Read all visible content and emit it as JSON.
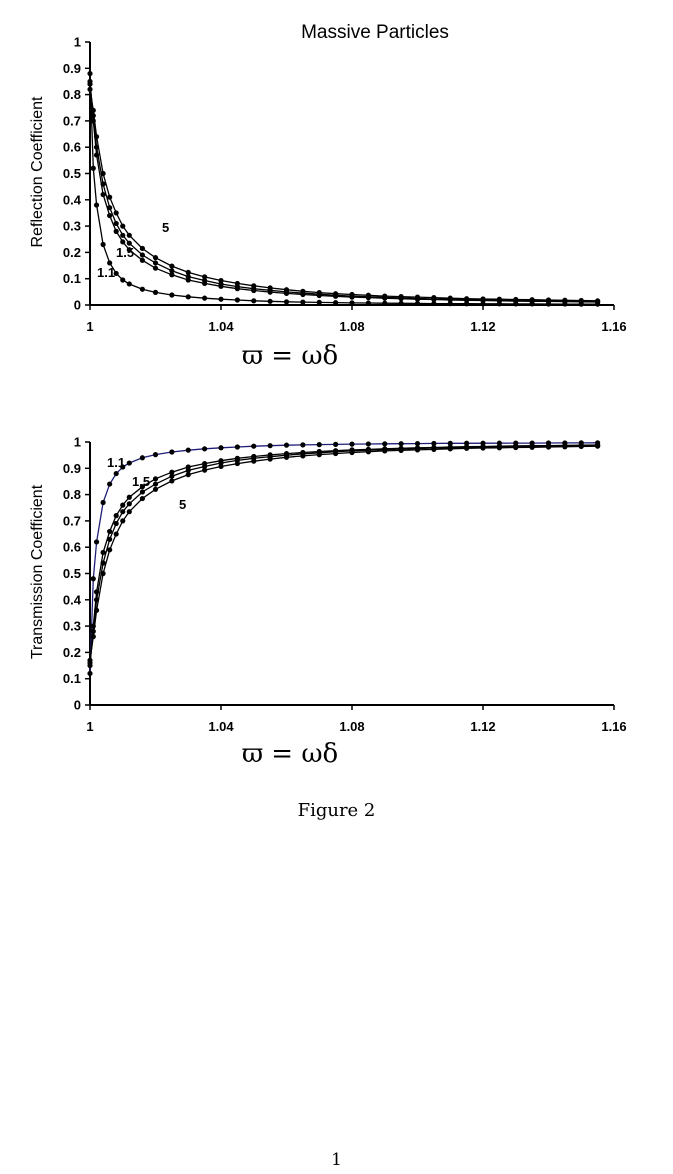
{
  "figure": {
    "caption": "Figure 2",
    "page_number": "1",
    "x_formula": "ϖ = ωδ"
  },
  "chart_data": [
    {
      "type": "line",
      "title": "Massive Particles",
      "xlabel": "ϖ = ωδ",
      "ylabel": "Reflection Coefficient",
      "xlim": [
        1,
        1.16
      ],
      "ylim": [
        0,
        1
      ],
      "xticks": [
        "1",
        "1.04",
        "1.08",
        "1.12",
        "1.16"
      ],
      "xtick_values": [
        1,
        1.04,
        1.08,
        1.12,
        1.16
      ],
      "yticks": [
        "0",
        "0.1",
        "0.2",
        "0.3",
        "0.4",
        "0.5",
        "0.6",
        "0.7",
        "0.8",
        "0.9",
        "1"
      ],
      "ytick_values": [
        0,
        0.1,
        0.2,
        0.3,
        0.4,
        0.5,
        0.6,
        0.7,
        0.8,
        0.9,
        1
      ],
      "grid": false,
      "legend": "none",
      "line_color": "#000000",
      "series": [
        {
          "label": "1.1",
          "x": [
            1.0,
            1.001,
            1.002,
            1.004,
            1.006,
            1.008,
            1.01,
            1.012,
            1.016,
            1.02,
            1.025,
            1.03,
            1.035,
            1.04,
            1.045,
            1.05,
            1.055,
            1.06,
            1.065,
            1.07,
            1.075,
            1.08,
            1.085,
            1.09,
            1.095,
            1.1,
            1.105,
            1.11,
            1.115,
            1.12,
            1.125,
            1.13,
            1.135,
            1.14,
            1.145,
            1.15,
            1.155
          ],
          "y": [
            0.88,
            0.52,
            0.38,
            0.23,
            0.16,
            0.12,
            0.095,
            0.08,
            0.06,
            0.048,
            0.038,
            0.031,
            0.026,
            0.022,
            0.019,
            0.016,
            0.014,
            0.012,
            0.011,
            0.01,
            0.009,
            0.008,
            0.0075,
            0.007,
            0.0065,
            0.006,
            0.0055,
            0.005,
            0.0048,
            0.0046,
            0.0044,
            0.0042,
            0.004,
            0.0038,
            0.0036,
            0.0034,
            0.0032
          ]
        },
        {
          "label": "1.5",
          "x": [
            1.0,
            1.001,
            1.002,
            1.004,
            1.006,
            1.008,
            1.01,
            1.012,
            1.016,
            1.02,
            1.025,
            1.03,
            1.035,
            1.04,
            1.045,
            1.05,
            1.055,
            1.06,
            1.065,
            1.07,
            1.075,
            1.08,
            1.085,
            1.09,
            1.095,
            1.1,
            1.105,
            1.11,
            1.115,
            1.12,
            1.125,
            1.13,
            1.135,
            1.14,
            1.145,
            1.15,
            1.155
          ],
          "y": [
            0.85,
            0.7,
            0.57,
            0.42,
            0.34,
            0.28,
            0.24,
            0.21,
            0.17,
            0.14,
            0.115,
            0.095,
            0.082,
            0.071,
            0.062,
            0.055,
            0.049,
            0.044,
            0.04,
            0.036,
            0.033,
            0.03,
            0.028,
            0.026,
            0.024,
            0.022,
            0.021,
            0.019,
            0.018,
            0.017,
            0.016,
            0.015,
            0.014,
            0.0135,
            0.013,
            0.012,
            0.0115
          ]
        },
        {
          "label": "",
          "x": [
            1.0,
            1.001,
            1.002,
            1.004,
            1.006,
            1.008,
            1.01,
            1.012,
            1.016,
            1.02,
            1.025,
            1.03,
            1.035,
            1.04,
            1.045,
            1.05,
            1.055,
            1.06,
            1.065,
            1.07,
            1.075,
            1.08,
            1.085,
            1.09,
            1.095,
            1.1,
            1.105,
            1.11,
            1.115,
            1.12,
            1.125,
            1.13,
            1.135,
            1.14,
            1.145,
            1.15,
            1.155
          ],
          "y": [
            0.84,
            0.72,
            0.6,
            0.46,
            0.37,
            0.31,
            0.265,
            0.235,
            0.19,
            0.16,
            0.13,
            0.108,
            0.093,
            0.08,
            0.07,
            0.062,
            0.056,
            0.05,
            0.045,
            0.041,
            0.037,
            0.034,
            0.031,
            0.029,
            0.027,
            0.025,
            0.023,
            0.022,
            0.02,
            0.019,
            0.018,
            0.017,
            0.016,
            0.015,
            0.0145,
            0.014,
            0.0135
          ]
        },
        {
          "label": "5",
          "x": [
            1.0,
            1.001,
            1.002,
            1.004,
            1.006,
            1.008,
            1.01,
            1.012,
            1.016,
            1.02,
            1.025,
            1.03,
            1.035,
            1.04,
            1.045,
            1.05,
            1.055,
            1.06,
            1.065,
            1.07,
            1.075,
            1.08,
            1.085,
            1.09,
            1.095,
            1.1,
            1.105,
            1.11,
            1.115,
            1.12,
            1.125,
            1.13,
            1.135,
            1.14,
            1.145,
            1.15,
            1.155
          ],
          "y": [
            0.82,
            0.74,
            0.64,
            0.5,
            0.41,
            0.35,
            0.3,
            0.265,
            0.215,
            0.18,
            0.148,
            0.124,
            0.107,
            0.093,
            0.082,
            0.073,
            0.065,
            0.058,
            0.052,
            0.047,
            0.043,
            0.04,
            0.037,
            0.034,
            0.032,
            0.03,
            0.028,
            0.026,
            0.024,
            0.023,
            0.022,
            0.021,
            0.02,
            0.019,
            0.018,
            0.017,
            0.016
          ]
        }
      ]
    },
    {
      "type": "line",
      "title": "",
      "xlabel": "ϖ = ωδ",
      "ylabel": "Transmission Coefficient",
      "xlim": [
        1,
        1.16
      ],
      "ylim": [
        0,
        1
      ],
      "xticks": [
        "1",
        "1.04",
        "1.08",
        "1.12",
        "1.16"
      ],
      "xtick_values": [
        1,
        1.04,
        1.08,
        1.12,
        1.16
      ],
      "yticks": [
        "0",
        "0.1",
        "0.2",
        "0.3",
        "0.4",
        "0.5",
        "0.6",
        "0.7",
        "0.8",
        "0.9",
        "1"
      ],
      "ytick_values": [
        0,
        0.1,
        0.2,
        0.3,
        0.4,
        0.5,
        0.6,
        0.7,
        0.8,
        0.9,
        1
      ],
      "grid": false,
      "legend": "none",
      "series": [
        {
          "label": "1.1",
          "color": "#1f1f7a",
          "x": [
            1.0,
            1.001,
            1.002,
            1.004,
            1.006,
            1.008,
            1.01,
            1.012,
            1.016,
            1.02,
            1.025,
            1.03,
            1.035,
            1.04,
            1.045,
            1.05,
            1.055,
            1.06,
            1.065,
            1.07,
            1.075,
            1.08,
            1.085,
            1.09,
            1.095,
            1.1,
            1.105,
            1.11,
            1.115,
            1.12,
            1.125,
            1.13,
            1.135,
            1.14,
            1.145,
            1.15,
            1.155
          ],
          "y": [
            0.12,
            0.48,
            0.62,
            0.77,
            0.84,
            0.88,
            0.905,
            0.92,
            0.94,
            0.952,
            0.962,
            0.969,
            0.974,
            0.978,
            0.981,
            0.984,
            0.986,
            0.988,
            0.989,
            0.99,
            0.991,
            0.992,
            0.9925,
            0.993,
            0.9935,
            0.994,
            0.9945,
            0.995,
            0.9952,
            0.9954,
            0.9956,
            0.9958,
            0.996,
            0.9962,
            0.9964,
            0.9966,
            0.9968
          ]
        },
        {
          "label": "1.5",
          "color": "#000000",
          "x": [
            1.0,
            1.001,
            1.002,
            1.004,
            1.006,
            1.008,
            1.01,
            1.012,
            1.016,
            1.02,
            1.025,
            1.03,
            1.035,
            1.04,
            1.045,
            1.05,
            1.055,
            1.06,
            1.065,
            1.07,
            1.075,
            1.08,
            1.085,
            1.09,
            1.095,
            1.1,
            1.105,
            1.11,
            1.115,
            1.12,
            1.125,
            1.13,
            1.135,
            1.14,
            1.145,
            1.15,
            1.155
          ],
          "y": [
            0.15,
            0.3,
            0.43,
            0.58,
            0.66,
            0.72,
            0.76,
            0.79,
            0.83,
            0.86,
            0.885,
            0.905,
            0.918,
            0.929,
            0.938,
            0.945,
            0.951,
            0.956,
            0.96,
            0.964,
            0.967,
            0.97,
            0.972,
            0.974,
            0.976,
            0.978,
            0.979,
            0.981,
            0.982,
            0.983,
            0.984,
            0.985,
            0.986,
            0.9865,
            0.987,
            0.988,
            0.9885
          ]
        },
        {
          "label": "",
          "color": "#000000",
          "x": [
            1.0,
            1.001,
            1.002,
            1.004,
            1.006,
            1.008,
            1.01,
            1.012,
            1.016,
            1.02,
            1.025,
            1.03,
            1.035,
            1.04,
            1.045,
            1.05,
            1.055,
            1.06,
            1.065,
            1.07,
            1.075,
            1.08,
            1.085,
            1.09,
            1.095,
            1.1,
            1.105,
            1.11,
            1.115,
            1.12,
            1.125,
            1.13,
            1.135,
            1.14,
            1.145,
            1.15,
            1.155
          ],
          "y": [
            0.16,
            0.28,
            0.4,
            0.54,
            0.63,
            0.69,
            0.735,
            0.765,
            0.81,
            0.84,
            0.87,
            0.892,
            0.907,
            0.92,
            0.93,
            0.938,
            0.944,
            0.95,
            0.955,
            0.959,
            0.963,
            0.966,
            0.969,
            0.971,
            0.973,
            0.975,
            0.977,
            0.978,
            0.98,
            0.981,
            0.982,
            0.983,
            0.984,
            0.985,
            0.9855,
            0.986,
            0.9865
          ]
        },
        {
          "label": "5",
          "color": "#000000",
          "x": [
            1.0,
            1.001,
            1.002,
            1.004,
            1.006,
            1.008,
            1.01,
            1.012,
            1.016,
            1.02,
            1.025,
            1.03,
            1.035,
            1.04,
            1.045,
            1.05,
            1.055,
            1.06,
            1.065,
            1.07,
            1.075,
            1.08,
            1.085,
            1.09,
            1.095,
            1.1,
            1.105,
            1.11,
            1.115,
            1.12,
            1.125,
            1.13,
            1.135,
            1.14,
            1.145,
            1.15,
            1.155
          ],
          "y": [
            0.17,
            0.26,
            0.36,
            0.5,
            0.59,
            0.65,
            0.7,
            0.735,
            0.785,
            0.82,
            0.852,
            0.876,
            0.893,
            0.907,
            0.918,
            0.927,
            0.935,
            0.942,
            0.947,
            0.952,
            0.956,
            0.96,
            0.963,
            0.966,
            0.968,
            0.97,
            0.972,
            0.974,
            0.976,
            0.977,
            0.978,
            0.979,
            0.98,
            0.981,
            0.982,
            0.983,
            0.984
          ]
        }
      ]
    }
  ]
}
